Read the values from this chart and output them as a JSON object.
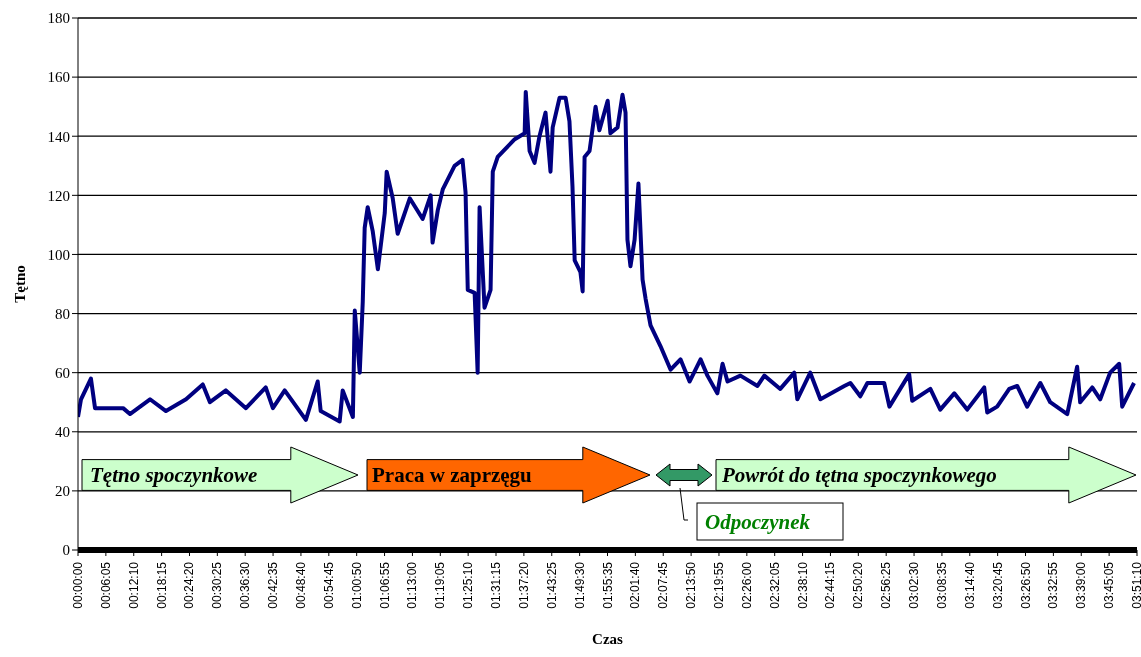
{
  "chart_data": {
    "type": "line",
    "xlabel": "Czas",
    "ylabel": "Tętno",
    "color": "#000080",
    "x": [
      0,
      0.011,
      0.047,
      0.062,
      0.164,
      0.189,
      0.262,
      0.32,
      0.393,
      0.454,
      0.48,
      0.538,
      0.611,
      0.683,
      0.709,
      0.752,
      0.829,
      0.872,
      0.883,
      0.952,
      0.963,
      1.0,
      1.007,
      1.025,
      1.036,
      1.043,
      1.054,
      1.072,
      1.091,
      1.116,
      1.123,
      1.145,
      1.163,
      1.207,
      1.254,
      1.283,
      1.29,
      1.309,
      1.327,
      1.37,
      1.399,
      1.41,
      1.418,
      1.443,
      1.454,
      1.461,
      1.479,
      1.501,
      1.509,
      1.527,
      1.589,
      1.625,
      1.629,
      1.643,
      1.661,
      1.679,
      1.701,
      1.719,
      1.727,
      1.752,
      1.774,
      1.788,
      1.799,
      1.807,
      1.828,
      1.836,
      1.843,
      1.861,
      1.883,
      1.897,
      1.927,
      1.937,
      1.963,
      1.981,
      1.992,
      1.999,
      2.01,
      2.025,
      2.039,
      2.054,
      2.065,
      2.083,
      2.119,
      2.156,
      2.192,
      2.225,
      2.265,
      2.29,
      2.326,
      2.345,
      2.363,
      2.41,
      2.472,
      2.497,
      2.555,
      2.606,
      2.617,
      2.664,
      2.701,
      2.788,
      2.81,
      2.846,
      2.872,
      2.933,
      2.952,
      3.024,
      3.035,
      3.101,
      3.137,
      3.188,
      3.235,
      3.297,
      3.308,
      3.344,
      3.388,
      3.417,
      3.453,
      3.501,
      3.537,
      3.599,
      3.635,
      3.646,
      3.69,
      3.719,
      3.755,
      3.788,
      3.799,
      3.842
    ],
    "values": [
      45,
      51,
      58,
      48,
      48,
      46,
      51,
      47,
      51,
      56,
      50,
      54,
      48,
      55,
      48,
      54,
      44,
      57,
      47,
      43.5,
      54,
      45,
      81,
      60,
      84,
      109,
      116,
      108,
      95,
      114,
      128,
      119,
      107,
      119,
      112,
      120,
      104,
      115,
      122,
      130,
      132,
      121,
      88,
      87,
      60,
      116,
      82,
      88,
      128,
      133,
      139,
      141,
      155,
      135,
      131,
      140,
      148,
      128,
      143,
      153,
      153,
      145,
      123,
      98,
      94,
      87.5,
      133,
      135,
      150,
      142,
      152,
      141,
      143,
      154,
      148,
      105,
      96,
      105,
      124,
      91.5,
      85,
      76,
      69,
      61,
      64.5,
      57,
      64.5,
      59,
      53,
      63,
      57,
      59,
      55.5,
      59,
      54.5,
      60,
      51,
      60,
      51,
      55.5,
      56.5,
      52,
      56.5,
      56.5,
      48.5,
      59.5,
      50.5,
      54.5,
      47.5,
      53,
      47.5,
      55,
      46.5,
      48.5,
      54.5,
      55.5,
      48.5,
      56.5,
      50,
      46,
      62,
      50,
      55,
      51,
      60,
      63,
      48.5,
      56.5
    ],
    "xlim": [
      0,
      3.8528
    ],
    "xticks": [
      {
        "value": 0,
        "label": "00:00:00"
      },
      {
        "value": 0.1014,
        "label": "00:06:05"
      },
      {
        "value": 0.2028,
        "label": "00:12:10"
      },
      {
        "value": 0.3042,
        "label": "00:18:15"
      },
      {
        "value": 0.4056,
        "label": "00:24:20"
      },
      {
        "value": 0.5069,
        "label": "00:30:25"
      },
      {
        "value": 0.6083,
        "label": "00:36:30"
      },
      {
        "value": 0.7097,
        "label": "00:42:35"
      },
      {
        "value": 0.8111,
        "label": "00:48:40"
      },
      {
        "value": 0.9125,
        "label": "00:54:45"
      },
      {
        "value": 1.0139,
        "label": "01:00:50"
      },
      {
        "value": 1.1153,
        "label": "01:06:55"
      },
      {
        "value": 1.2167,
        "label": "01:13:00"
      },
      {
        "value": 1.3181,
        "label": "01:19:05"
      },
      {
        "value": 1.4194,
        "label": "01:25:10"
      },
      {
        "value": 1.5208,
        "label": "01:31:15"
      },
      {
        "value": 1.6222,
        "label": "01:37:20"
      },
      {
        "value": 1.7236,
        "label": "01:43:25"
      },
      {
        "value": 1.825,
        "label": "01:49:30"
      },
      {
        "value": 1.9264,
        "label": "01:55:35"
      },
      {
        "value": 2.0278,
        "label": "02:01:40"
      },
      {
        "value": 2.1292,
        "label": "02:07:45"
      },
      {
        "value": 2.2306,
        "label": "02:13:50"
      },
      {
        "value": 2.3319,
        "label": "02:19:55"
      },
      {
        "value": 2.4333,
        "label": "02:26:00"
      },
      {
        "value": 2.5347,
        "label": "02:32:05"
      },
      {
        "value": 2.6361,
        "label": "02:38:10"
      },
      {
        "value": 2.7375,
        "label": "02:44:15"
      },
      {
        "value": 2.8389,
        "label": "02:50:20"
      },
      {
        "value": 2.9403,
        "label": "02:56:25"
      },
      {
        "value": 3.0417,
        "label": "03:02:30"
      },
      {
        "value": 3.1431,
        "label": "03:08:35"
      },
      {
        "value": 3.2444,
        "label": "03:14:40"
      },
      {
        "value": 3.3458,
        "label": "03:20:45"
      },
      {
        "value": 3.4472,
        "label": "03:26:50"
      },
      {
        "value": 3.5486,
        "label": "03:32:55"
      },
      {
        "value": 3.65,
        "label": "03:39:00"
      },
      {
        "value": 3.7514,
        "label": "03:45:05"
      },
      {
        "value": 3.8528,
        "label": "03:51:10"
      }
    ],
    "ylim": [
      0,
      180
    ],
    "yticks": [
      0,
      20,
      40,
      60,
      80,
      100,
      120,
      140,
      160,
      180
    ],
    "grid": "y",
    "annotations": [
      "Tętno spoczynkowe",
      "Praca w zaprzęgu",
      "Odpoczynek",
      "Powrót do tętna spoczynkowego"
    ]
  }
}
